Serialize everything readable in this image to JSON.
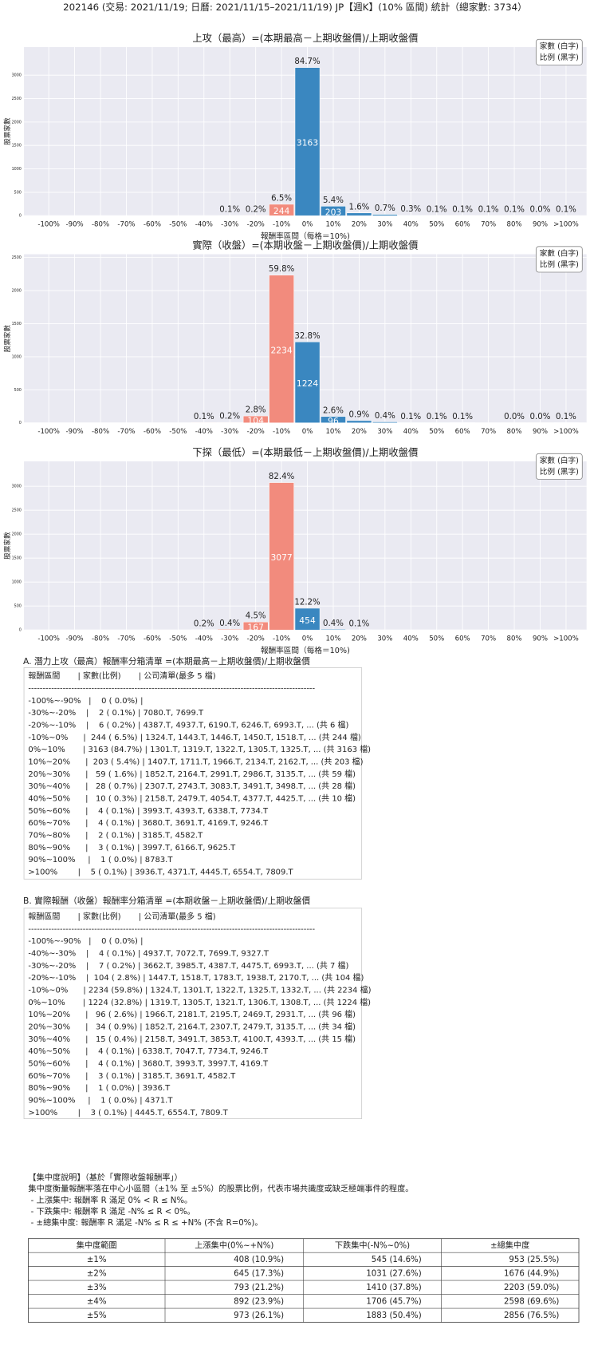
{
  "header": {
    "title": "202146 (交易: 2021/11/19; 日曆: 2021/11/15–2021/11/19) JP【週K】(10% 區間) 統計（總家數: 3734）"
  },
  "chart_data": [
    {
      "type": "bar",
      "title": "上攻（最高）=(本期最高－上期收盤價)/上期收盤價",
      "xlabel": "報酬率區間（每格＝10%)",
      "ylabel": "股票家數",
      "legend": [
        "家數 (白字)",
        "比例 (黑字)"
      ],
      "categories": [
        "-100%",
        "-90%",
        "-80%",
        "-70%",
        "-60%",
        "-50%",
        "-40%",
        "-30%",
        "-20%",
        "-10%",
        "0%",
        "10%",
        "20%",
        "30%",
        "40%",
        "50%",
        "60%",
        "70%",
        "80%",
        "90%",
        ">100%"
      ],
      "values": [
        0,
        0,
        0,
        0,
        0,
        0,
        0,
        2,
        6,
        244,
        3163,
        203,
        59,
        28,
        10,
        4,
        4,
        2,
        3,
        1,
        5
      ],
      "share_labels": [
        null,
        null,
        null,
        null,
        null,
        null,
        null,
        "0.1%",
        "0.2%",
        "6.5%",
        "84.7%",
        "5.4%",
        "1.6%",
        "0.7%",
        "0.3%",
        "0.1%",
        "0.1%",
        "0.1%",
        "0.1%",
        "0.0%",
        "0.1%"
      ],
      "colors": {
        "negative": "#f28b7d",
        "positive": "#3a87c0"
      },
      "ylim": [
        0,
        3600
      ],
      "yticks": [
        0,
        500,
        1000,
        1500,
        2000,
        2500,
        3000
      ],
      "grid": true
    },
    {
      "type": "bar",
      "title": "實際（收盤）=(本期收盤－上期收盤價)/上期收盤價",
      "ylabel": "股票家數",
      "legend": [
        "家數 (白字)",
        "比例 (黑字)"
      ],
      "categories": [
        "-100%",
        "-90%",
        "-80%",
        "-70%",
        "-60%",
        "-50%",
        "-40%",
        "-30%",
        "-20%",
        "-10%",
        "0%",
        "10%",
        "20%",
        "30%",
        "40%",
        "50%",
        "60%",
        "70%",
        "80%",
        "90%",
        ">100%"
      ],
      "values": [
        0,
        0,
        0,
        0,
        0,
        0,
        4,
        7,
        104,
        2234,
        1224,
        96,
        34,
        15,
        4,
        4,
        3,
        0,
        1,
        1,
        3
      ],
      "share_labels": [
        null,
        null,
        null,
        null,
        null,
        null,
        "0.1%",
        "0.2%",
        "2.8%",
        "59.8%",
        "32.8%",
        "2.6%",
        "0.9%",
        "0.4%",
        "0.1%",
        "0.1%",
        "0.1%",
        null,
        "0.0%",
        "0.0%",
        "0.1%"
      ],
      "colors": {
        "negative": "#f28b7d",
        "positive": "#3a87c0"
      },
      "ylim": [
        0,
        2550
      ],
      "yticks": [
        0,
        500,
        1000,
        1500,
        2000,
        2500
      ],
      "grid": true
    },
    {
      "type": "bar",
      "title": "下探（最低）=(本期最低－上期收盤價)/上期收盤價",
      "xlabel": "報酬率區間（每格＝10%)",
      "ylabel": "股票家數",
      "legend": [
        "家數 (白字)",
        "比例 (黑字)"
      ],
      "categories": [
        "-100%",
        "-90%",
        "-80%",
        "-70%",
        "-60%",
        "-50%",
        "-40%",
        "-30%",
        "-20%",
        "-10%",
        "0%",
        "10%",
        "20%",
        "30%",
        "40%",
        "50%",
        "60%",
        "70%",
        "80%",
        "90%",
        ">100%"
      ],
      "values": [
        0,
        0,
        0,
        0,
        0,
        0,
        8,
        15,
        167,
        3077,
        454,
        15,
        4,
        0,
        0,
        0,
        0,
        0,
        0,
        0,
        0
      ],
      "share_labels": [
        null,
        null,
        null,
        null,
        null,
        null,
        "0.2%",
        "0.4%",
        "4.5%",
        "82.4%",
        "12.2%",
        "0.4%",
        "0.1%",
        null,
        null,
        null,
        null,
        null,
        null,
        null,
        null
      ],
      "colors": {
        "negative": "#f28b7d",
        "positive": "#3a87c0"
      },
      "ylim": [
        0,
        3520
      ],
      "yticks": [
        0,
        500,
        1000,
        1500,
        2000,
        2500,
        3000
      ],
      "grid": true
    }
  ],
  "lists": [
    {
      "title": "A. 潛力上攻（最高）報酬率分箱清單 =(本期最高－上期收盤價)/上期收盤價",
      "lines": [
        "報酬區間       | 家數(比例)       | 公司清單(最多 5 檔)",
        "----------------------------------------------------------------------------------------------------",
        "-100%~-90%   |    0 ( 0.0%) |",
        "-30%~-20%    |    2 ( 0.1%) | 7080.T, 7699.T",
        "-20%~-10%    |    6 ( 0.2%) | 4387.T, 4937.T, 6190.T, 6246.T, 6993.T, ... (共 6 檔)",
        "-10%~0%      |  244 ( 6.5%) | 1324.T, 1443.T, 1446.T, 1450.T, 1518.T, ... (共 244 檔)",
        "0%~10%       | 3163 (84.7%) | 1301.T, 1319.T, 1322.T, 1305.T, 1325.T, ... (共 3163 檔)",
        "10%~20%      |  203 ( 5.4%) | 1407.T, 1711.T, 1966.T, 2134.T, 2162.T, ... (共 203 檔)",
        "20%~30%      |   59 ( 1.6%) | 1852.T, 2164.T, 2991.T, 2986.T, 3135.T, ... (共 59 檔)",
        "30%~40%      |   28 ( 0.7%) | 2307.T, 2743.T, 3083.T, 3491.T, 3498.T, ... (共 28 檔)",
        "40%~50%      |   10 ( 0.3%) | 2158.T, 2479.T, 4054.T, 4377.T, 4425.T, ... (共 10 檔)",
        "50%~60%      |    4 ( 0.1%) | 3993.T, 4393.T, 6338.T, 7734.T",
        "60%~70%      |    4 ( 0.1%) | 3680.T, 3691.T, 4169.T, 9246.T",
        "70%~80%      |    2 ( 0.1%) | 3185.T, 4582.T",
        "80%~90%      |    3 ( 0.1%) | 3997.T, 6166.T, 9625.T",
        "90%~100%     |    1 ( 0.0%) | 8783.T",
        ">100%        |    5 ( 0.1%) | 3936.T, 4371.T, 4445.T, 6554.T, 7809.T"
      ]
    },
    {
      "title": "B. 實際報酬（收盤）報酬率分箱清單 =(本期收盤－上期收盤價)/上期收盤價",
      "lines": [
        "報酬區間       | 家數(比例)       | 公司清單(最多 5 檔)",
        "----------------------------------------------------------------------------------------------------",
        "-100%~-90%   |    0 ( 0.0%) |",
        "-40%~-30%    |    4 ( 0.1%) | 4937.T, 7072.T, 7699.T, 9327.T",
        "-30%~-20%    |    7 ( 0.2%) | 3662.T, 3985.T, 4387.T, 4475.T, 6993.T, ... (共 7 檔)",
        "-20%~-10%    |  104 ( 2.8%) | 1447.T, 1518.T, 1783.T, 1938.T, 2170.T, ... (共 104 檔)",
        "-10%~0%      | 2234 (59.8%) | 1324.T, 1301.T, 1322.T, 1325.T, 1332.T, ... (共 2234 檔)",
        "0%~10%       | 1224 (32.8%) | 1319.T, 1305.T, 1321.T, 1306.T, 1308.T, ... (共 1224 檔)",
        "10%~20%      |   96 ( 2.6%) | 1966.T, 2181.T, 2195.T, 2469.T, 2931.T, ... (共 96 檔)",
        "20%~30%      |   34 ( 0.9%) | 1852.T, 2164.T, 2307.T, 2479.T, 3135.T, ... (共 34 檔)",
        "30%~40%      |   15 ( 0.4%) | 2158.T, 3491.T, 3853.T, 4100.T, 4393.T, ... (共 15 檔)",
        "40%~50%      |    4 ( 0.1%) | 6338.T, 7047.T, 7734.T, 9246.T",
        "50%~60%      |    4 ( 0.1%) | 3680.T, 3993.T, 3997.T, 4169.T",
        "60%~70%      |    3 ( 0.1%) | 3185.T, 3691.T, 4582.T",
        "80%~90%      |    1 ( 0.0%) | 3936.T",
        "90%~100%     |    1 ( 0.0%) | 4371.T",
        ">100%        |    3 ( 0.1%) | 4445.T, 6554.T, 7809.T"
      ]
    }
  ],
  "concentration": {
    "lines": [
      "【集中度說明】（基於「實際收盤報酬率」）",
      "集中度衡量報酬率落在中心小區間（±1% 至 ±5%）的股票比例，代表市場共識度或缺乏極端事件的程度。",
      " - 上漲集中: 報酬率 R 滿足 0% < R ≤ N%。",
      " - 下跌集中: 報酬率 R 滿足 -N% ≤ R < 0%。",
      " - ±總集中度: 報酬率 R 滿足 -N% ≤ R ≤ +N% (不含 R=0%)。"
    ],
    "table": {
      "header": [
        "集中度範圍",
        "上漲集中(0%~+N%)",
        "下跌集中(-N%~0%)",
        "±總集中度"
      ],
      "rows": [
        [
          "±1%",
          "408 (10.9%)",
          "545 (14.6%)",
          "953 (25.5%)"
        ],
        [
          "±2%",
          "645 (17.3%)",
          "1031 (27.6%)",
          "1676 (44.9%)"
        ],
        [
          "±3%",
          "793 (21.2%)",
          "1410 (37.8%)",
          "2203 (59.0%)"
        ],
        [
          "±4%",
          "892 (23.9%)",
          "1706 (45.7%)",
          "2598 (69.6%)"
        ],
        [
          "±5%",
          "973 (26.1%)",
          "1883 (50.4%)",
          "2856 (76.5%)"
        ]
      ]
    }
  }
}
